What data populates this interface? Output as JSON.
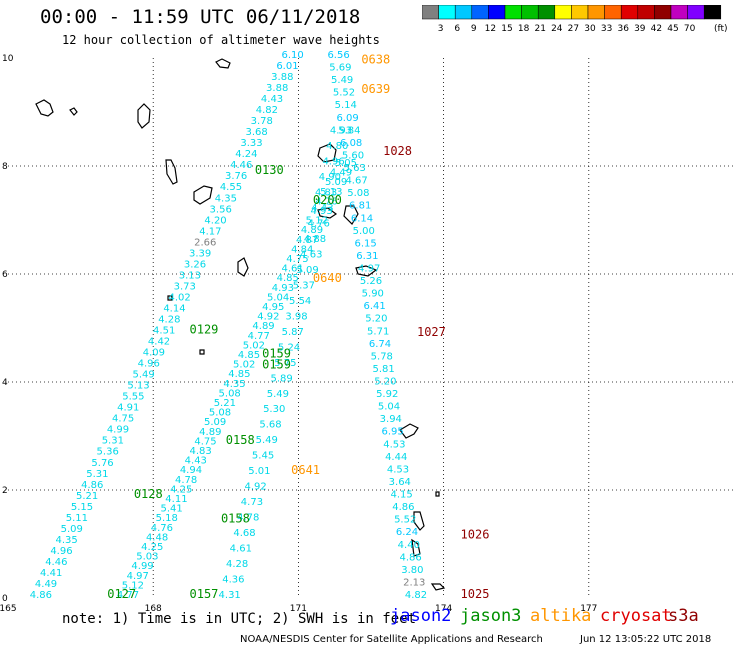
{
  "header": {
    "title": "00:00 - 11:59 UTC 06/11/2018",
    "subtitle": "12 hour collection of altimeter wave heights"
  },
  "colorbar": {
    "unit_label": "(ft)",
    "ticks": [
      "3",
      "6",
      "9",
      "12",
      "15",
      "18",
      "21",
      "24",
      "27",
      "30",
      "33",
      "36",
      "39",
      "42",
      "45",
      "70"
    ],
    "colors": [
      "#808080",
      "#00ffff",
      "#00c8ff",
      "#0064ff",
      "#0000ff",
      "#00e000",
      "#00c000",
      "#009000",
      "#ffff00",
      "#ffc800",
      "#ff9600",
      "#ff6400",
      "#e00000",
      "#c00000",
      "#900000",
      "#c000c0",
      "#8000ff",
      "#000000"
    ]
  },
  "chart_data": {
    "type": "scatter",
    "xlim": [
      165,
      180
    ],
    "ylim": [
      0,
      10
    ],
    "x_ticks": [
      "165",
      "168",
      "171",
      "174",
      "177"
    ],
    "y_ticks": [
      "0",
      "2",
      "4",
      "6",
      "8",
      "10"
    ],
    "grid": true,
    "satellites": [
      {
        "name": "jason2",
        "color": "#0000ff"
      },
      {
        "name": "jason3",
        "color": "#009000"
      },
      {
        "name": "altika",
        "color": "#ff9600"
      },
      {
        "name": "cryosat",
        "color": "#e00000"
      },
      {
        "name": "s3a",
        "color": "#900000"
      }
    ],
    "time_labels": [
      {
        "text": "0127",
        "x": 167.05,
        "y": 0.0,
        "color": "#009000"
      },
      {
        "text": "0128",
        "x": 167.6,
        "y": 1.85,
        "color": "#009000"
      },
      {
        "text": "0129",
        "x": 168.75,
        "y": 4.9,
        "color": "#009000"
      },
      {
        "text": "0130",
        "x": 170.1,
        "y": 7.85,
        "color": "#009000"
      },
      {
        "text": "0157",
        "x": 168.75,
        "y": 0.0,
        "color": "#009000"
      },
      {
        "text": "0158",
        "x": 169.4,
        "y": 1.4,
        "color": "#009000"
      },
      {
        "text": "0158",
        "x": 169.5,
        "y": 2.85,
        "color": "#009000"
      },
      {
        "text": "0159",
        "x": 170.25,
        "y": 4.25,
        "color": "#009000"
      },
      {
        "text": "0159",
        "x": 170.25,
        "y": 4.45,
        "color": "#009000"
      },
      {
        "text": "0200",
        "x": 171.3,
        "y": 7.3,
        "color": "#009000"
      },
      {
        "text": "0638",
        "x": 172.3,
        "y": 9.9,
        "color": "#ff9600"
      },
      {
        "text": "0639",
        "x": 172.3,
        "y": 9.35,
        "color": "#ff9600"
      },
      {
        "text": "0640",
        "x": 171.3,
        "y": 5.85,
        "color": "#ff9600"
      },
      {
        "text": "0641",
        "x": 170.85,
        "y": 2.3,
        "color": "#ff9600"
      },
      {
        "text": "1025",
        "x": 174.35,
        "y": 0.0,
        "color": "#900000"
      },
      {
        "text": "1026",
        "x": 174.35,
        "y": 1.1,
        "color": "#900000"
      },
      {
        "text": "1027",
        "x": 173.45,
        "y": 4.85,
        "color": "#900000"
      },
      {
        "text": "1028",
        "x": 172.75,
        "y": 8.2,
        "color": "#900000"
      }
    ],
    "tracks": [
      {
        "id": "track-0127",
        "start": [
          165.45,
          0.0
        ],
        "end": [
          170.65,
          10.0
        ],
        "values": [
          "4.86",
          "4.49",
          "4.41",
          "4.46",
          "4.96",
          "4.35",
          "5.09",
          "5.11",
          "5.15",
          "5.21",
          "4.86",
          "5.31",
          "5.76",
          "5.36",
          "5.31",
          "4.99",
          "4.75",
          "4.91",
          "5.55",
          "5.13",
          "5.49",
          "4.96",
          "4.09",
          "4.42",
          "4.51",
          "4.28",
          "4.14",
          "4.02",
          "3.73",
          "3.13",
          "3.26",
          "3.39",
          "2.66",
          "4.17",
          "4.20",
          "3.56",
          "4.35",
          "4.55",
          "3.76",
          "4.46",
          "4.24",
          "3.33",
          "3.68",
          "3.78",
          "4.82",
          "4.43",
          "3.88",
          "3.88",
          "6.01",
          "6.10"
        ]
      },
      {
        "id": "track-0157",
        "start": [
          167.25,
          0.0
        ],
        "end": [
          171.75,
          8.0
        ],
        "values": [
          "4.77",
          "5.12",
          "4.97",
          "4.99",
          "5.03",
          "4.25",
          "4.48",
          "4.76",
          "5.18",
          "5.41",
          "4.11",
          "4.25",
          "4.78",
          "4.94",
          "4.43",
          "4.83",
          "4.75",
          "4.89",
          "5.09",
          "5.08",
          "5.21",
          "5.08",
          "4.35",
          "4.85",
          "5.02",
          "4.85",
          "5.02",
          "4.77",
          "4.89",
          "4.92",
          "4.95",
          "5.04",
          "4.93",
          "4.85",
          "4.61",
          "4.75",
          "4.84",
          "4.87",
          "4.89",
          "5.12",
          "4.93",
          "4.76",
          "5.13",
          "5.09",
          "4.49",
          "5.05"
        ]
      },
      {
        "id": "track-0158",
        "start": [
          169.35,
          0.0
        ],
        "end": [
          171.65,
          8.6
        ],
        "values": [
          "4.31",
          "4.36",
          "4.28",
          "4.61",
          "4.68",
          "4.78",
          "4.73",
          "4.92",
          "5.01",
          "5.45",
          "5.49",
          "5.68",
          "5.30",
          "5.49",
          "5.89",
          "5.75",
          "5.24",
          "5.87",
          "3.98",
          "5.54",
          "5.37",
          "5.09",
          "4.63",
          "4.88",
          "4.76",
          "4.43",
          "4.83",
          "4.90",
          "4.96",
          "4.80",
          "4.93"
        ]
      },
      {
        "id": "track-0638",
        "start": [
          171.6,
          10.0
        ],
        "end": [
          173.2,
          0.0
        ],
        "values": [
          "6.56",
          "5.69",
          "5.49",
          "5.52",
          "5.14",
          "6.09",
          "5.84",
          "6.08",
          "5.60",
          "5.63",
          "4.67",
          "5.08",
          "6.81",
          "6.14",
          "5.00",
          "6.15",
          "6.31",
          "4.97",
          "5.26",
          "5.90",
          "6.41",
          "5.20",
          "5.71",
          "6.74",
          "5.78",
          "5.81",
          "5.20",
          "5.92",
          "5.04",
          "3.94",
          "6.95",
          "4.53",
          "4.44",
          "4.53",
          "3.64",
          "4.15",
          "4.86",
          "5.52",
          "6.24",
          "4.40",
          "4.86",
          "3.80",
          "2.13",
          "4.82"
        ]
      }
    ]
  },
  "footer": {
    "note": "note: 1) Time is in UTC; 2) SWH is in feet",
    "credit": "NOAA/NESDIS Center for Satellite Applications and Research",
    "timestamp": "Jun 12 13:05:22 UTC 2018"
  }
}
